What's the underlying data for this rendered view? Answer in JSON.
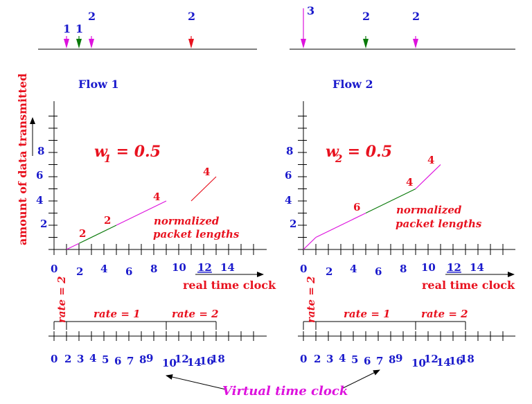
{
  "colors": {
    "blue": "#1a1acc",
    "red": "#e8121f",
    "magenta": "#dd12dd",
    "green": "#0a7a0a"
  },
  "flow1": {
    "title": "Flow 1",
    "weight_sym": "w",
    "weight_sub": "1",
    "weight_val": " = 0.5",
    "arrivals": [
      {
        "t": 1,
        "label": "1",
        "color": "magenta"
      },
      {
        "t": 2,
        "label": "1",
        "color": "green"
      },
      {
        "t": 3,
        "label": "2",
        "color": "magenta"
      },
      {
        "t": 11,
        "label": "2",
        "color": "red"
      }
    ],
    "segments": [
      {
        "x": [
          1,
          2
        ],
        "y": [
          0,
          0.5
        ],
        "color": "magenta"
      },
      {
        "x": [
          2,
          5
        ],
        "y": [
          0.5,
          2
        ],
        "color": "green"
      },
      {
        "x": [
          5,
          9
        ],
        "y": [
          2,
          4
        ],
        "color": "magenta"
      },
      {
        "x": [
          11,
          13
        ],
        "y": [
          4,
          6
        ],
        "color": "red"
      }
    ],
    "seg_labels": [
      "2",
      "2",
      "4",
      "4"
    ],
    "xticks": [
      "0",
      "2",
      "4",
      "6",
      "8",
      "10",
      "12",
      "14"
    ],
    "yticks": [
      "2",
      "4",
      "6",
      "8"
    ],
    "rate_first": "rate = 2",
    "rate_mid": "rate = 1",
    "rate_last": "rate = 2",
    "vticks": [
      "0",
      "2",
      "3",
      "4",
      "5",
      "6",
      "7",
      "8",
      "9",
      "10",
      "12",
      "14",
      "16",
      "18"
    ]
  },
  "flow2": {
    "title": "Flow 2",
    "weight_sym": "w",
    "weight_sub": "2",
    "weight_val": " = 0.5",
    "arrivals": [
      {
        "t": 0,
        "label": "3",
        "color": "magenta"
      },
      {
        "t": 5,
        "label": "2",
        "color": "green"
      },
      {
        "t": 9,
        "label": "2",
        "color": "magenta"
      }
    ],
    "segments": [
      {
        "x": [
          0,
          1
        ],
        "y": [
          0,
          1
        ],
        "color": "magenta"
      },
      {
        "x": [
          1,
          5
        ],
        "y": [
          1,
          3
        ],
        "color": "magenta"
      },
      {
        "x": [
          5,
          9
        ],
        "y": [
          3,
          5
        ],
        "color": "green"
      },
      {
        "x": [
          9,
          11
        ],
        "y": [
          5,
          7
        ],
        "color": "magenta"
      }
    ],
    "seg_labels": [
      "6",
      "4",
      "4"
    ],
    "xticks": [
      "0",
      "2",
      "4",
      "6",
      "8",
      "10",
      "12",
      "14"
    ],
    "yticks": [
      "2",
      "4",
      "6",
      "8"
    ],
    "rate_first": "rate = 2",
    "rate_mid": "rate = 1",
    "rate_last": "rate = 2",
    "vticks": [
      "0",
      "2",
      "3",
      "4",
      "5",
      "6",
      "7",
      "8",
      "9",
      "10",
      "12",
      "14",
      "16",
      "18"
    ]
  },
  "ylabel": "amount of data transmitted",
  "xlabel": "real time clock",
  "norm_line1": "normalized",
  "norm_line2": "packet lengths",
  "virtual_label": "Virtual time clock"
}
